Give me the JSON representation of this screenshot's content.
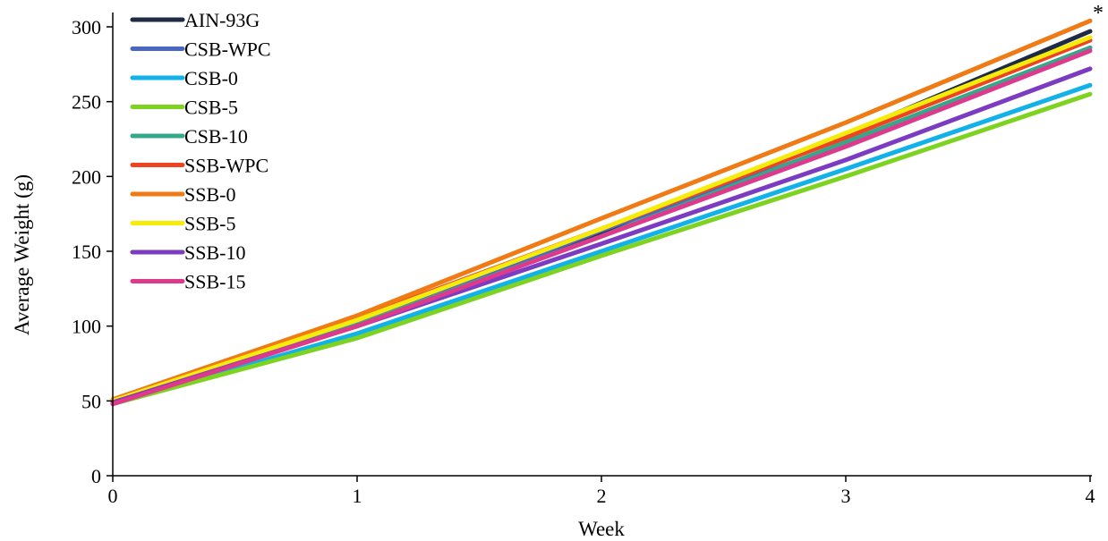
{
  "chart_data": {
    "type": "line",
    "title": "",
    "xlabel": "Week",
    "ylabel": "Average Weight (g)",
    "x": [
      0,
      1,
      2,
      3,
      4
    ],
    "xlim": [
      0,
      4
    ],
    "ylim": [
      0,
      300
    ],
    "x_ticks": [
      "0",
      "1",
      "2",
      "3",
      "4"
    ],
    "y_ticks": [
      "0",
      "50",
      "100",
      "150",
      "200",
      "250",
      "300"
    ],
    "grid": false,
    "legend_position": "top-left",
    "annotation": "*",
    "series": [
      {
        "name": "AIN-93G",
        "color": "#1f2a44",
        "values": [
          50,
          104,
          163,
          228,
          297
        ]
      },
      {
        "name": "CSB-WPC",
        "color": "#4a67c2",
        "values": [
          49,
          101,
          164,
          222,
          286
        ]
      },
      {
        "name": "CSB-0",
        "color": "#12b2e8",
        "values": [
          48,
          95,
          150,
          205,
          261
        ]
      },
      {
        "name": "CSB-5",
        "color": "#7ed321",
        "values": [
          48,
          92,
          147,
          200,
          255
        ]
      },
      {
        "name": "CSB-10",
        "color": "#35a88a",
        "values": [
          49,
          101,
          160,
          223,
          286
        ]
      },
      {
        "name": "SSB-WPC",
        "color": "#ee4424",
        "values": [
          50,
          105,
          165,
          226,
          291
        ]
      },
      {
        "name": "SSB-0",
        "color": "#f07a14",
        "values": [
          51,
          107,
          172,
          236,
          304
        ]
      },
      {
        "name": "SSB-5",
        "color": "#f5ec0a",
        "values": [
          50,
          104,
          165,
          229,
          293
        ]
      },
      {
        "name": "SSB-10",
        "color": "#7b3cc2",
        "values": [
          49,
          100,
          155,
          211,
          272
        ]
      },
      {
        "name": "SSB-15",
        "color": "#dd3a8e",
        "values": [
          48,
          100,
          160,
          220,
          284
        ]
      }
    ]
  }
}
